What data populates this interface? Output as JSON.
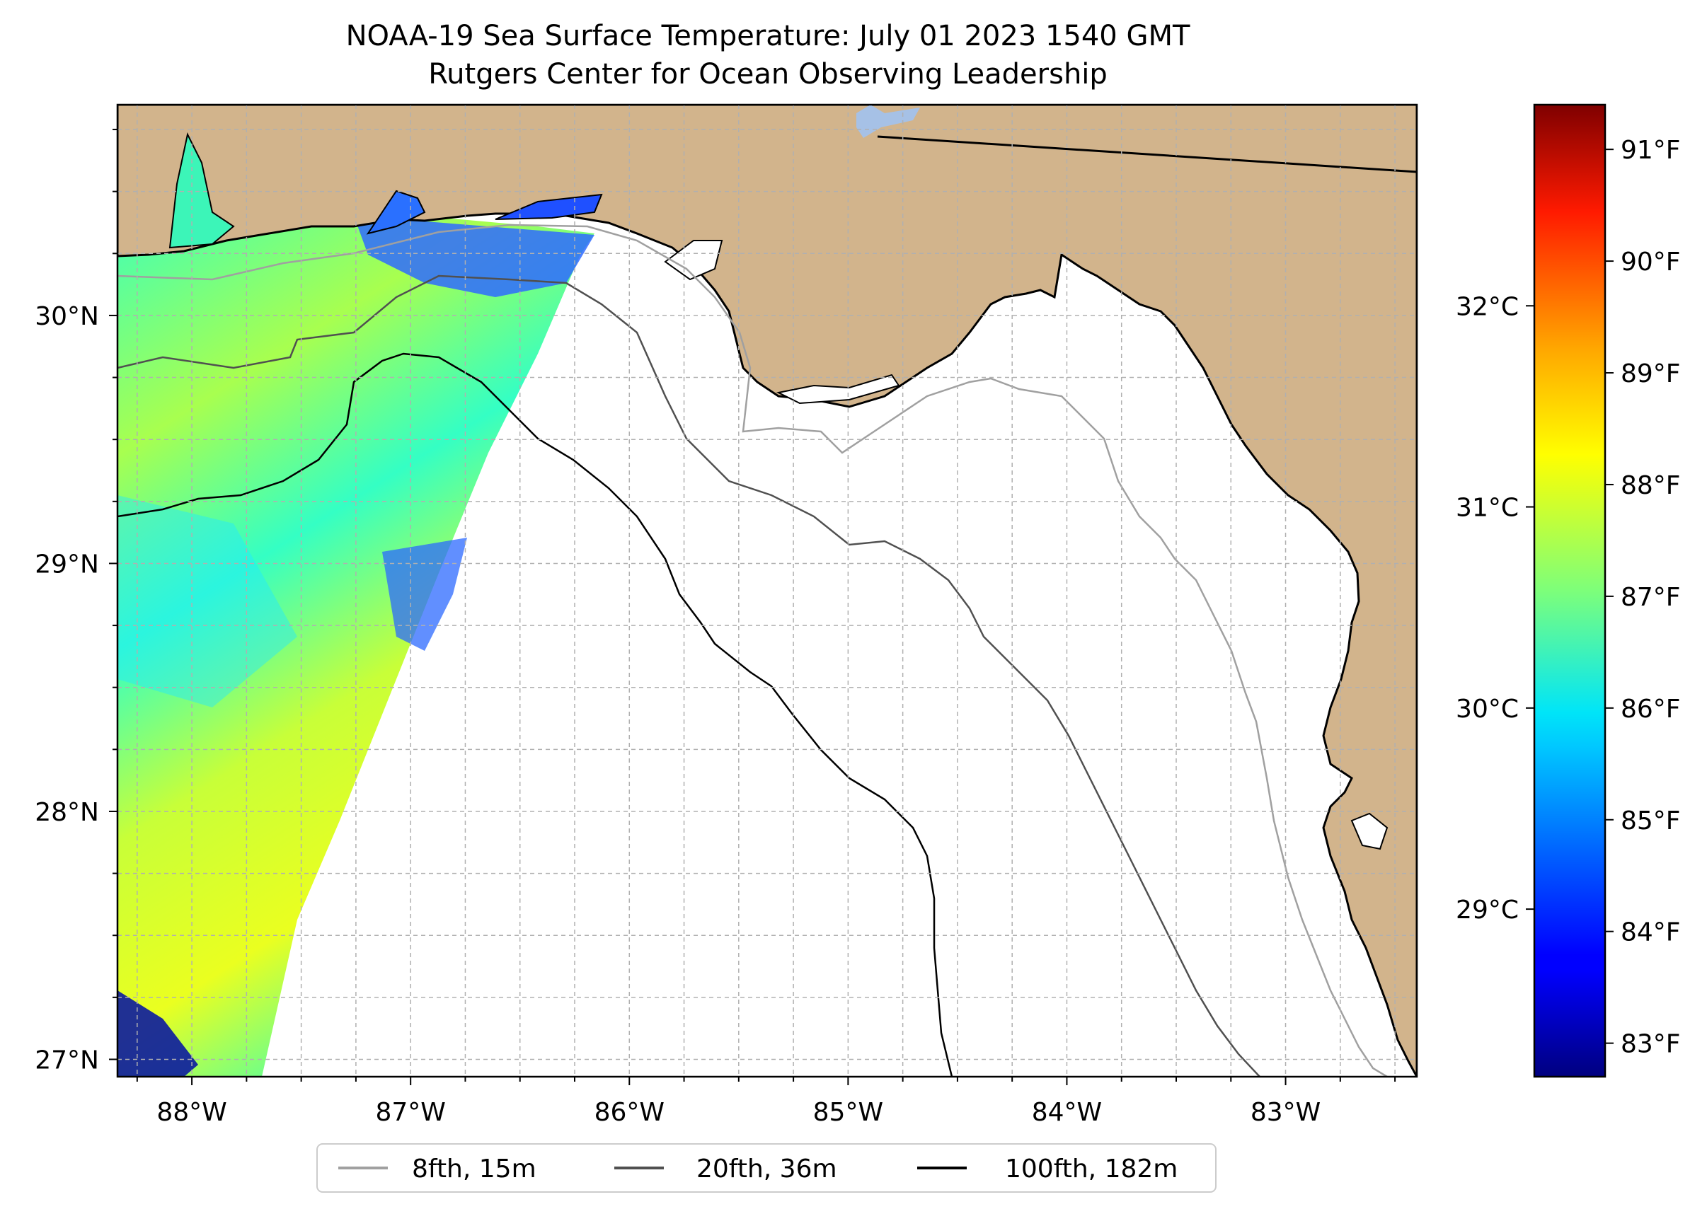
{
  "title": {
    "line1": "NOAA-19 Sea Surface Temperature: July 01 2023 1540 GMT",
    "line2": "Rutgers Center for Ocean Observing Leadership"
  },
  "colors": {
    "land": "#d2b48c",
    "ocean": "#ffffff",
    "lake": "#a6c1e6",
    "coastline": "#000000",
    "grid": "#b0b0b0"
  },
  "map": {
    "lon_range": [
      -88.34,
      -82.4
    ],
    "lat_range": [
      26.93,
      30.85
    ],
    "lon_ticks": [
      {
        "value": -88,
        "label": "88°W"
      },
      {
        "value": -87,
        "label": "87°W"
      },
      {
        "value": -86,
        "label": "86°W"
      },
      {
        "value": -85,
        "label": "85°W"
      },
      {
        "value": -84,
        "label": "84°W"
      },
      {
        "value": -83,
        "label": "83°W"
      }
    ],
    "lat_ticks": [
      {
        "value": 27,
        "label": "27°N"
      },
      {
        "value": 28,
        "label": "28°N"
      },
      {
        "value": 29,
        "label": "29°N"
      },
      {
        "value": 30,
        "label": "30°N"
      }
    ],
    "grid_spacing_deg": 0.25
  },
  "legend": {
    "items": [
      {
        "label": "8fth, 15m",
        "color": "#a0a0a0"
      },
      {
        "label": "20fth, 36m",
        "color": "#505050"
      },
      {
        "label": "100fth, 182m",
        "color": "#000000"
      }
    ]
  },
  "colorbar": {
    "celsius_ticks": [
      {
        "value": 32,
        "label": "32°C"
      },
      {
        "value": 31,
        "label": "31°C"
      },
      {
        "value": 30,
        "label": "30°C"
      },
      {
        "value": 29,
        "label": "29°C"
      }
    ],
    "fahrenheit_ticks": [
      {
        "value": 91,
        "label": "91°F"
      },
      {
        "value": 90,
        "label": "90°F"
      },
      {
        "value": 89,
        "label": "89°F"
      },
      {
        "value": 88,
        "label": "88°F"
      },
      {
        "value": 87,
        "label": "87°F"
      },
      {
        "value": 86,
        "label": "86°F"
      },
      {
        "value": 85,
        "label": "85°F"
      },
      {
        "value": 84,
        "label": "84°F"
      },
      {
        "value": 83,
        "label": "83°F"
      }
    ],
    "range_f": [
      82.7,
      91.4
    ]
  }
}
